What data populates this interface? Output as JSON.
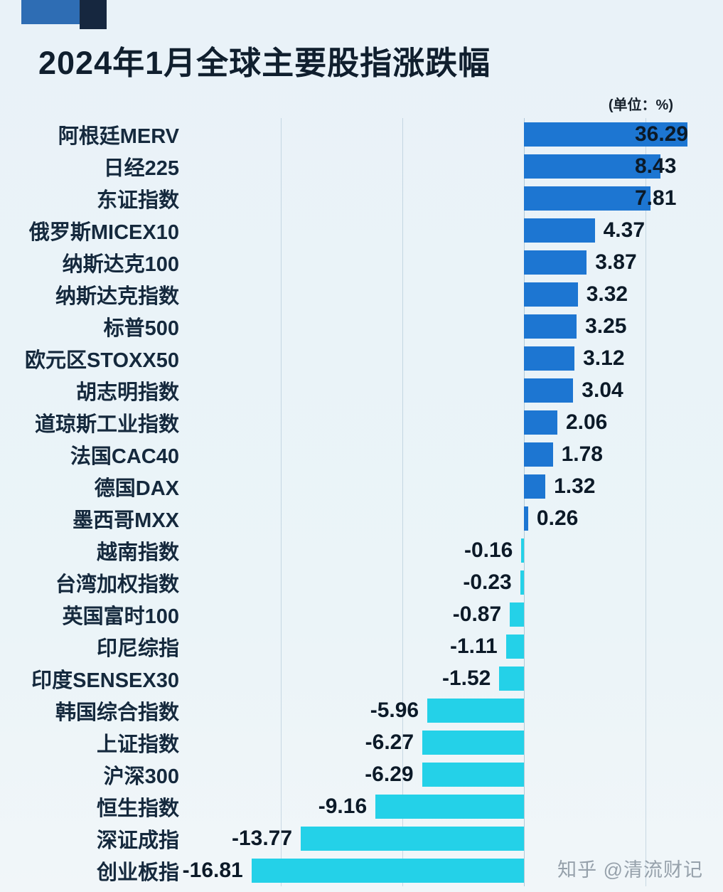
{
  "title": "2024年1月全球主要股指涨跌幅",
  "unit_label": "(单位：%)",
  "watermark": "知乎 @清流财记",
  "chart_data": {
    "type": "bar",
    "orientation": "horizontal",
    "title": "2024年1月全球主要股指涨跌幅",
    "unit": "%",
    "categories": [
      "阿根廷MERV",
      "日经225",
      "东证指数",
      "俄罗斯MICEX10",
      "纳斯达克100",
      "纳斯达克指数",
      "标普500",
      "欧元区STOXX50",
      "胡志明指数",
      "道琼斯工业指数",
      "法国CAC40",
      "德国DAX",
      "墨西哥MXX",
      "越南指数",
      "台湾加权指数",
      "英国富时100",
      "印尼综指",
      "印度SENSEX30",
      "韩国综合指数",
      "上证指数",
      "沪深300",
      "恒生指数",
      "深证成指",
      "创业板指"
    ],
    "values": [
      36.29,
      8.43,
      7.81,
      4.37,
      3.87,
      3.32,
      3.25,
      3.12,
      3.04,
      2.06,
      1.78,
      1.32,
      0.26,
      -0.16,
      -0.23,
      -0.87,
      -1.11,
      -1.52,
      -5.96,
      -6.27,
      -6.29,
      -9.16,
      -13.77,
      -16.81
    ],
    "colors": {
      "positive": "#1d76d2",
      "negative": "#24d1e8",
      "background": "#e9f2f8",
      "title_text": "#101f2e",
      "value_text": "#0c1a28"
    },
    "layout": {
      "gridlines_at_values": [
        -15,
        -7.5,
        0,
        7.5
      ],
      "axis_display_min": -20.7,
      "axis_display_max": 11.1,
      "note_clipped_bar": "阿根廷MERV bar (36.29) is clipped at the right chart edge",
      "legend": "none",
      "grid": "faint-vertical"
    }
  }
}
